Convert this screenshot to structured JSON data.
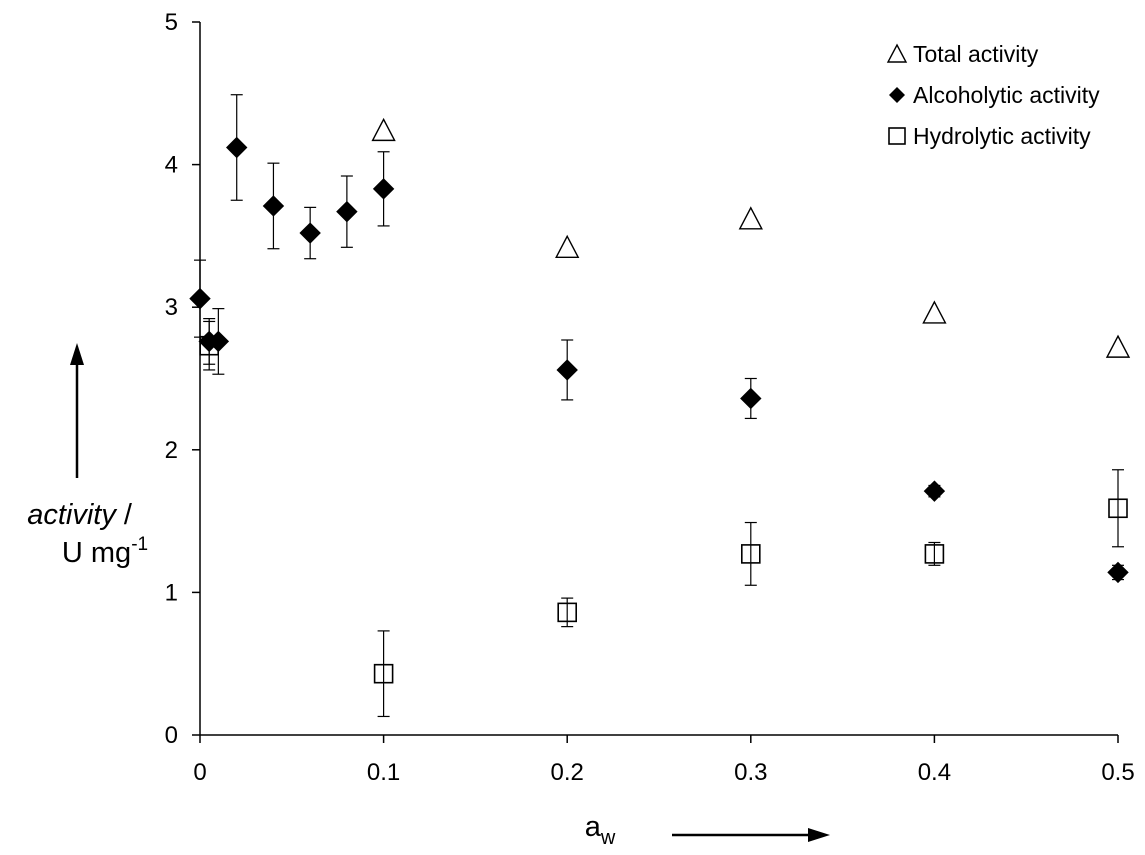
{
  "chart_data": {
    "type": "scatter",
    "xlabel": {
      "main": "a",
      "sub": "w"
    },
    "ylabel": {
      "line1": "activity",
      "line1_suffix": " /",
      "line2": "U mg",
      "line2_sup": "-1"
    },
    "xlim": [
      0,
      0.5
    ],
    "ylim": [
      0,
      5
    ],
    "x_ticks": [
      {
        "value": 0,
        "label": "0"
      },
      {
        "value": 0.1,
        "label": "0.1"
      },
      {
        "value": 0.2,
        "label": "0.2"
      },
      {
        "value": 0.3,
        "label": "0.3"
      },
      {
        "value": 0.4,
        "label": "0.4"
      },
      {
        "value": 0.5,
        "label": "0.5"
      }
    ],
    "y_ticks": [
      {
        "value": 0,
        "label": "0"
      },
      {
        "value": 1,
        "label": "1"
      },
      {
        "value": 2,
        "label": "2"
      },
      {
        "value": 3,
        "label": "3"
      },
      {
        "value": 4,
        "label": "4"
      },
      {
        "value": 5,
        "label": "5"
      }
    ],
    "grid": false,
    "legend_position": "top-right",
    "series": [
      {
        "name": "Total activity",
        "marker": "triangle-open",
        "color": "#000000",
        "points": [
          {
            "x": 0.1,
            "y": 4.24
          },
          {
            "x": 0.2,
            "y": 3.42
          },
          {
            "x": 0.3,
            "y": 3.62
          },
          {
            "x": 0.4,
            "y": 2.96
          },
          {
            "x": 0.5,
            "y": 2.72
          }
        ]
      },
      {
        "name": "Alcoholytic activity",
        "marker": "diamond-filled",
        "color": "#000000",
        "points": [
          {
            "x": 0.0,
            "y": 3.06,
            "err": 0.27
          },
          {
            "x": 0.005,
            "y": 2.76,
            "err": 0.16
          },
          {
            "x": 0.01,
            "y": 2.76,
            "err": 0.23
          },
          {
            "x": 0.02,
            "y": 4.12,
            "err": 0.37
          },
          {
            "x": 0.04,
            "y": 3.71,
            "err": 0.3
          },
          {
            "x": 0.06,
            "y": 3.52,
            "err": 0.18
          },
          {
            "x": 0.08,
            "y": 3.67,
            "err": 0.25
          },
          {
            "x": 0.1,
            "y": 3.83,
            "err": 0.26
          },
          {
            "x": 0.2,
            "y": 2.56,
            "err": 0.21
          },
          {
            "x": 0.3,
            "y": 2.36,
            "err": 0.14
          },
          {
            "x": 0.4,
            "y": 1.71,
            "err": 0.04
          },
          {
            "x": 0.5,
            "y": 1.14,
            "err": 0.05
          }
        ]
      },
      {
        "name": "Hydrolytic activity",
        "marker": "square-open",
        "color": "#000000",
        "points": [
          {
            "x": 0.005,
            "y": 2.73,
            "err": 0.17
          },
          {
            "x": 0.1,
            "y": 0.43,
            "err": 0.3
          },
          {
            "x": 0.2,
            "y": 0.86,
            "err": 0.1
          },
          {
            "x": 0.3,
            "y": 1.27,
            "err": 0.22
          },
          {
            "x": 0.4,
            "y": 1.27,
            "err": 0.08
          },
          {
            "x": 0.5,
            "y": 1.59,
            "err": 0.27
          }
        ]
      }
    ]
  }
}
